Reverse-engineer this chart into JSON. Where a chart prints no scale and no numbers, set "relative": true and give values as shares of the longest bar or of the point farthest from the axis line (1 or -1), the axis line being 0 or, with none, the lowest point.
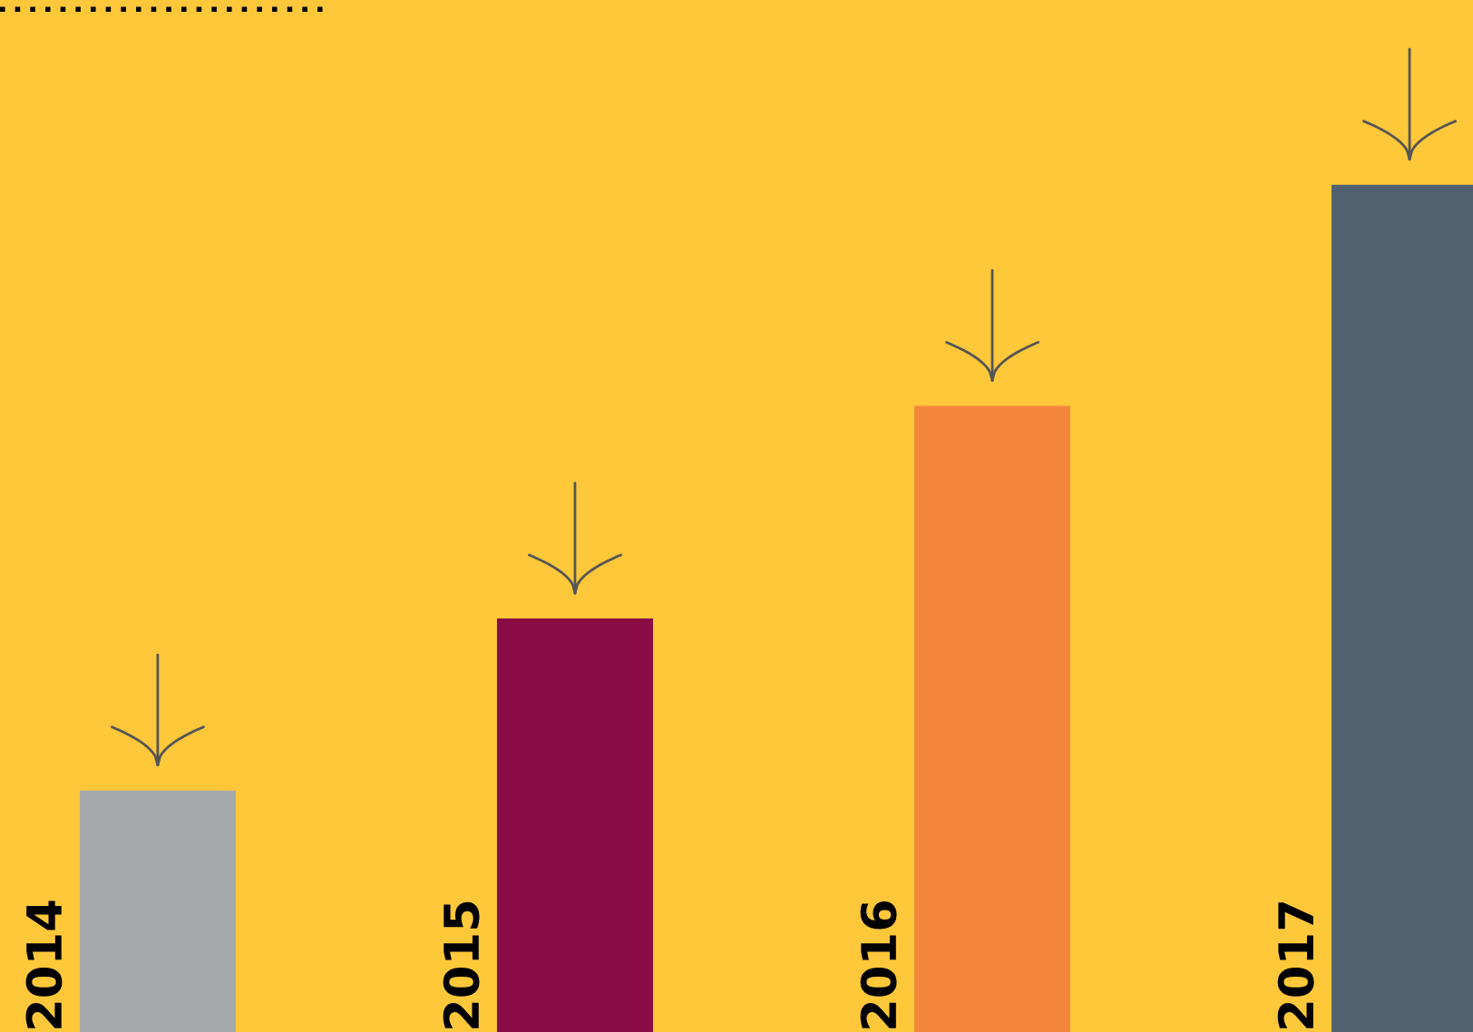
{
  "chart_data": {
    "type": "bar",
    "relative": true,
    "categories": [
      "2014",
      "2015",
      "2016",
      "2017"
    ],
    "values": [
      0.285,
      0.488,
      0.739,
      1
    ],
    "colors": [
      "#a5a9ab",
      "#8b0c44",
      "#f4863c",
      "#526170"
    ]
  }
}
